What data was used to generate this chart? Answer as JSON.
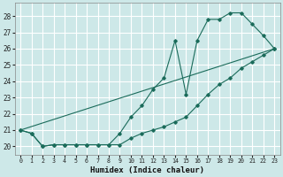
{
  "xlabel": "Humidex (Indice chaleur)",
  "bg_color": "#cde8e8",
  "grid_color": "#ffffff",
  "line_color": "#1a6b5a",
  "xlim": [
    -0.5,
    23.5
  ],
  "ylim": [
    19.5,
    28.8
  ],
  "xticks": [
    0,
    1,
    2,
    3,
    4,
    5,
    6,
    7,
    8,
    9,
    10,
    11,
    12,
    13,
    14,
    15,
    16,
    17,
    18,
    19,
    20,
    21,
    22,
    23
  ],
  "yticks": [
    20,
    21,
    22,
    23,
    24,
    25,
    26,
    27,
    28
  ],
  "series1_x": [
    0,
    1,
    2,
    3,
    4,
    5,
    6,
    7,
    8,
    9,
    10,
    11,
    12,
    13,
    14,
    15,
    16,
    17,
    18,
    19,
    20,
    21,
    22,
    23
  ],
  "series1_y": [
    21.0,
    20.8,
    20.0,
    20.1,
    20.1,
    20.1,
    20.1,
    20.1,
    20.1,
    20.1,
    20.5,
    20.8,
    21.0,
    21.2,
    21.5,
    21.8,
    22.5,
    23.2,
    23.8,
    24.2,
    24.8,
    25.2,
    25.6,
    26.0
  ],
  "series2_x": [
    0,
    1,
    2,
    3,
    4,
    5,
    6,
    7,
    8,
    9,
    10,
    11,
    12,
    13,
    14,
    15,
    16,
    17,
    18,
    19,
    20,
    21,
    22,
    23
  ],
  "series2_y": [
    21.0,
    20.8,
    20.0,
    20.1,
    20.1,
    20.1,
    20.1,
    20.1,
    20.1,
    20.8,
    21.8,
    22.5,
    23.5,
    24.2,
    26.5,
    23.2,
    26.5,
    27.8,
    27.8,
    28.2,
    28.2,
    27.5,
    26.8,
    26.0
  ],
  "series3_x": [
    0,
    23
  ],
  "series3_y": [
    21.0,
    26.0
  ]
}
